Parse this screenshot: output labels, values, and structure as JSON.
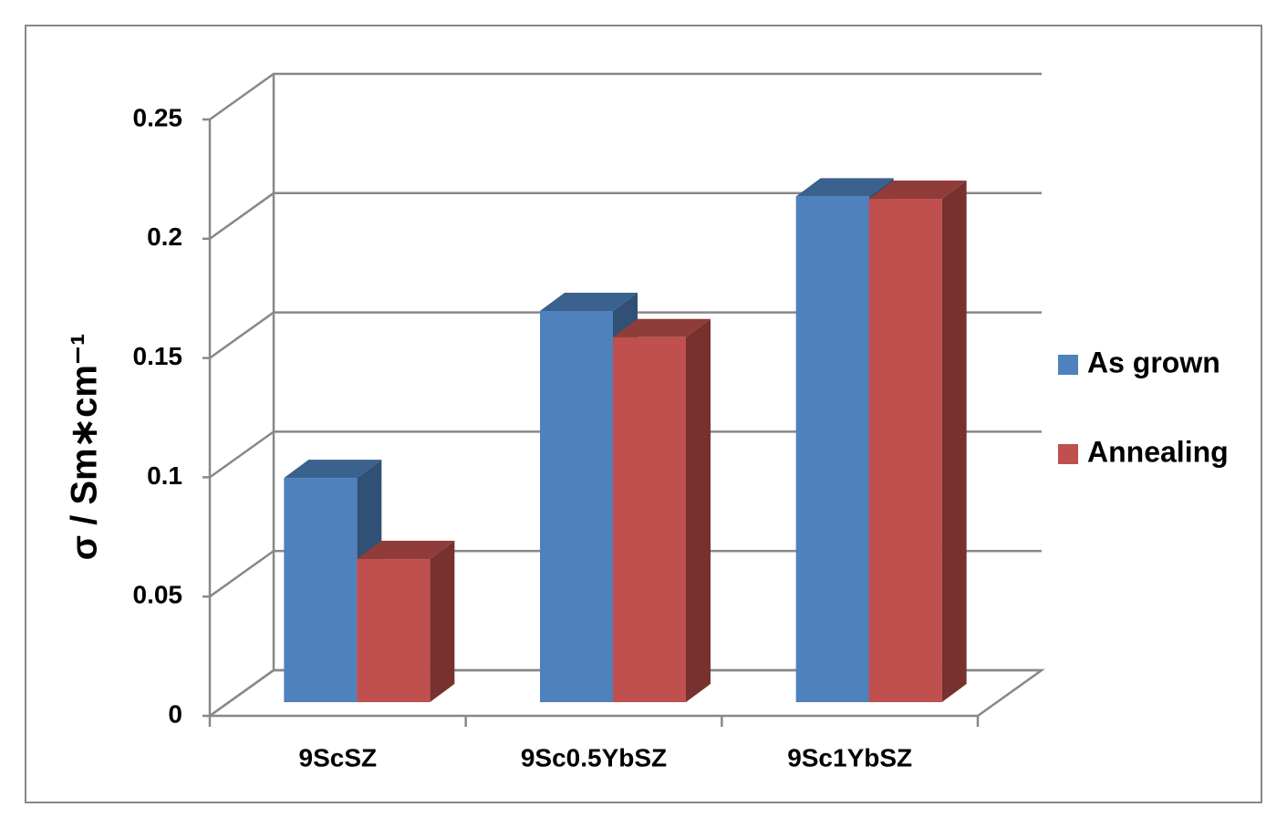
{
  "chart_data": {
    "type": "bar3d",
    "ylabel": "σ / Sm∗cm⁻¹",
    "categories": [
      "9ScSZ",
      "9Sc0.5YbSZ",
      "9Sc1YbSZ"
    ],
    "series": [
      {
        "name": "As grown",
        "color": "#4f81bd",
        "values": [
          0.094,
          0.164,
          0.212
        ]
      },
      {
        "name": "Annealing",
        "color": "#c0504d",
        "values": [
          0.06,
          0.153,
          0.211
        ]
      }
    ],
    "ylim": [
      0,
      0.25
    ],
    "yticks": [
      0,
      0.05,
      0.1,
      0.15,
      0.2,
      0.25
    ],
    "grid": true,
    "legend": "right"
  }
}
